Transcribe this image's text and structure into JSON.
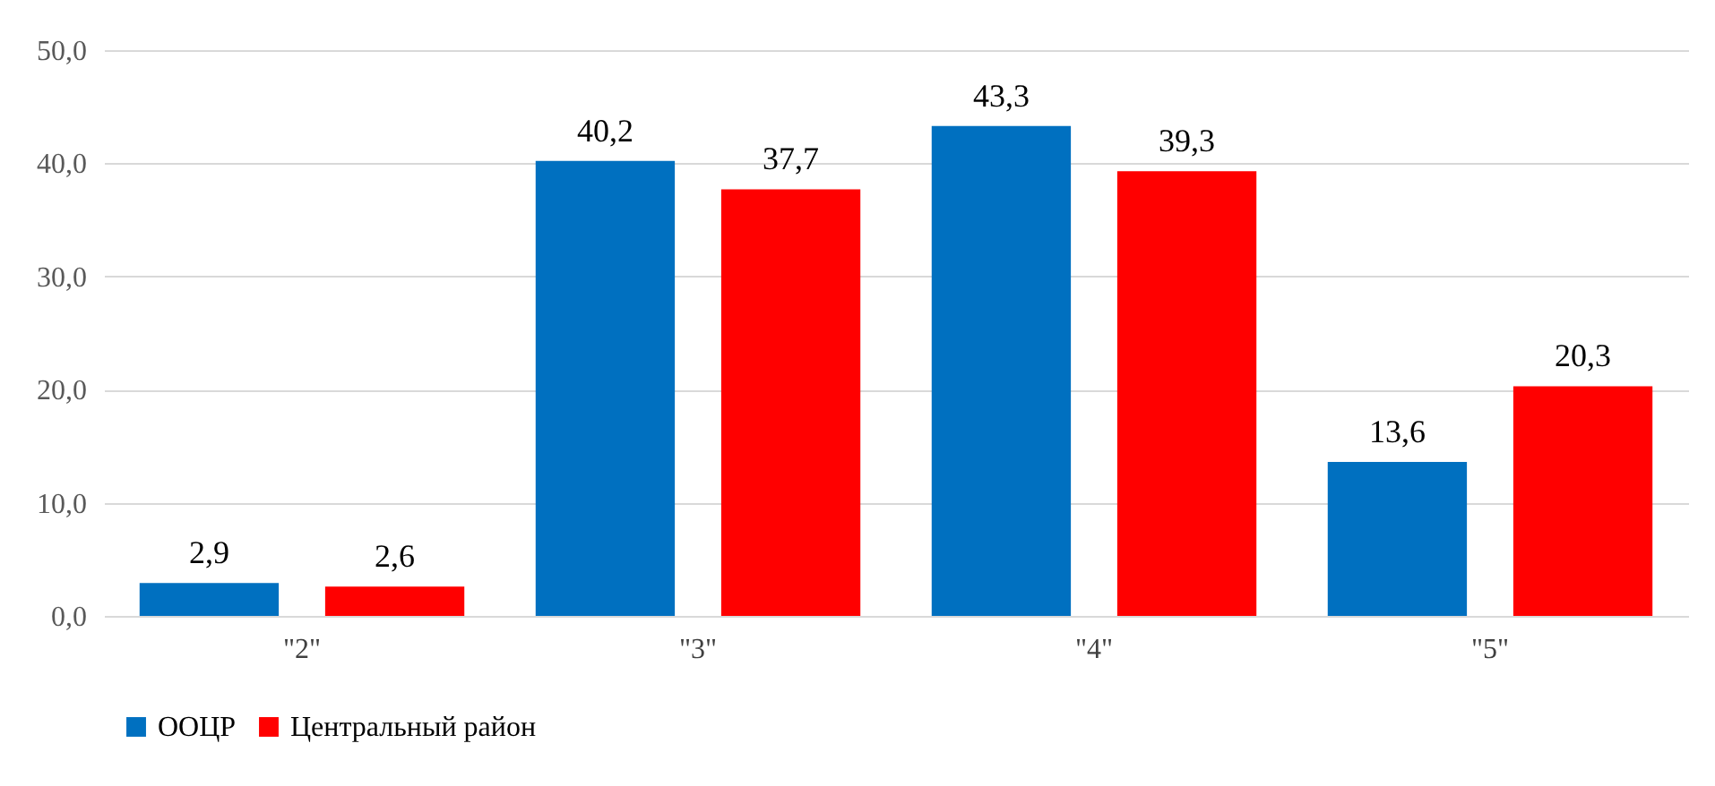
{
  "chart_data": {
    "type": "bar",
    "categories": [
      "\"2\"",
      "\"3\"",
      "\"4\"",
      "\"5\""
    ],
    "series": [
      {
        "name": "ООЦР",
        "color": "#0070c0",
        "values": [
          2.9,
          40.2,
          43.3,
          13.6
        ],
        "value_labels": [
          "2,9",
          "40,2",
          "43,3",
          "13,6"
        ]
      },
      {
        "name": "Центральный район",
        "color": "#ff0000",
        "values": [
          2.6,
          37.7,
          39.3,
          20.3
        ],
        "value_labels": [
          "2,6",
          "37,7",
          "39,3",
          "20,3"
        ]
      }
    ],
    "ylim": [
      0,
      50
    ],
    "yticks": [
      {
        "value": 0,
        "label": "0,0"
      },
      {
        "value": 10,
        "label": "10,0"
      },
      {
        "value": 20,
        "label": "20,0"
      },
      {
        "value": 30,
        "label": "30,0"
      },
      {
        "value": 40,
        "label": "40,0"
      },
      {
        "value": 50,
        "label": "50,0"
      }
    ],
    "grid": "y",
    "legend": "bottom"
  }
}
